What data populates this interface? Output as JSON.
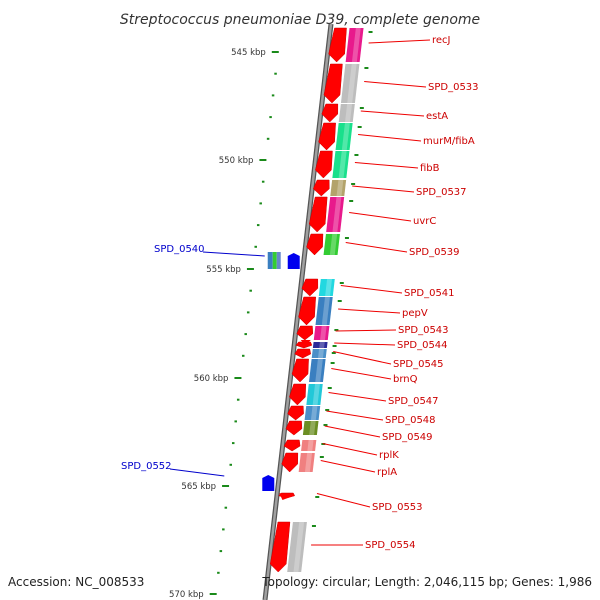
{
  "title": "Streptococcus pneumoniae D39, complete genome",
  "footer": {
    "accession": "Accession: NC_008533",
    "summary": "Topology: circular; Length: 2,046,115 bp; Genes: 1,986"
  },
  "scale_labels": [
    "545 kbp",
    "550 kbp",
    "555 kbp",
    "560 kbp",
    "565 kbp",
    "570 kbp"
  ],
  "genes_forward": [
    {
      "label": "recJ",
      "color": "#e8198c"
    },
    {
      "label": "SPD_0533",
      "color": "#bdbdbd"
    },
    {
      "label": "estA",
      "color": "#bdbdbd"
    },
    {
      "label": "murM/fibA",
      "color": "#19e08c"
    },
    {
      "label": "fibB",
      "color": "#19e08c"
    },
    {
      "label": "SPD_0537",
      "color": "#b3a36b"
    },
    {
      "label": "uvrC",
      "color": "#e8198c"
    },
    {
      "label": "SPD_0539",
      "color": "#33cc33"
    },
    {
      "label": "SPD_0541",
      "color": "#22d8e0"
    },
    {
      "label": "pepV",
      "color": "#3a7fc0"
    },
    {
      "label": "SPD_0543",
      "color": "#e8198c"
    },
    {
      "label": "SPD_0544",
      "color": "#2a2a99"
    },
    {
      "label": "SPD_0545",
      "color": "#4a8fc8"
    },
    {
      "label": "brnQ",
      "color": "#3a7fc0"
    },
    {
      "label": "SPD_0547",
      "color": "#22c8d8"
    },
    {
      "label": "SPD_0548",
      "color": "#4a8fc8"
    },
    {
      "label": "SPD_0549",
      "color": "#6b8e23"
    },
    {
      "label": "rplK",
      "color": "#f08080"
    },
    {
      "label": "rplA",
      "color": "#f08080"
    },
    {
      "label": "SPD_0553",
      "color": "#ff0000"
    },
    {
      "label": "SPD_0554",
      "color": "#bdbdbd"
    }
  ],
  "genes_reverse": [
    {
      "label": "SPD_0540",
      "color": "#0000ee"
    },
    {
      "label": "SPD_0552",
      "color": "#0000ee"
    }
  ]
}
